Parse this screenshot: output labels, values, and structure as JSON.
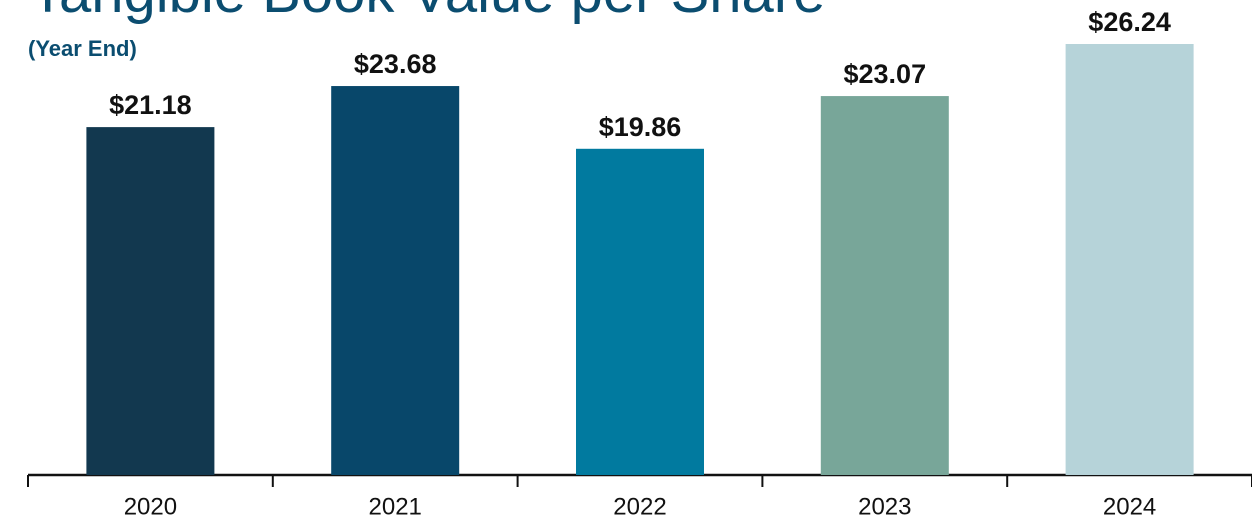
{
  "chart_data": {
    "type": "bar",
    "title": "Tangible Book Value per Share",
    "subtitle": "(Year End)",
    "categories": [
      "2020",
      "2021",
      "2022",
      "2023",
      "2024"
    ],
    "values": [
      21.18,
      23.68,
      19.86,
      23.07,
      26.24
    ],
    "value_labels": [
      "$21.18",
      "$23.68",
      "$19.86",
      "$23.07",
      "$26.24"
    ],
    "colors": [
      "#12384f",
      "#08476a",
      "#017a9f",
      "#78a699",
      "#b6d3d9"
    ]
  }
}
